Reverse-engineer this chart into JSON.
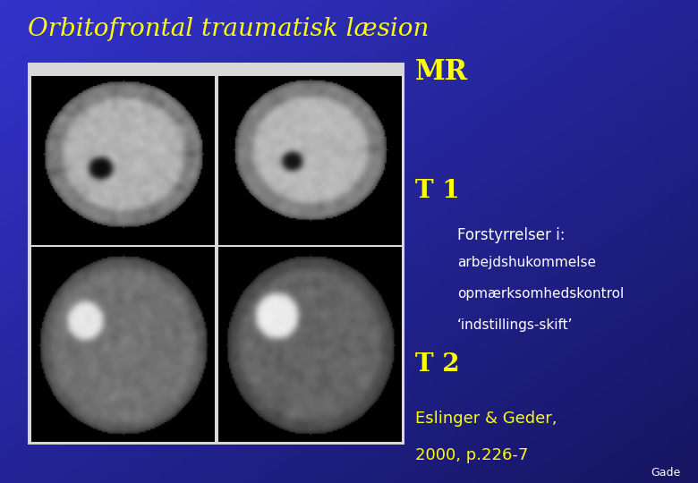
{
  "bg_color_top_left": "#3333CC",
  "bg_color_bottom_right": "#1a1a6e",
  "title": "Orbitofrontal traumatisk læsion",
  "title_color": "#FFFF00",
  "title_fontsize": 20,
  "mr_label": "MR",
  "mr_color": "#FFFF00",
  "mr_fontsize": 22,
  "t1_label": "T 1",
  "t1_color": "#FFFF00",
  "t1_fontsize": 20,
  "t2_label": "T 2",
  "t2_color": "#FFFF00",
  "t2_fontsize": 20,
  "forstyrrelser_title": "Forstyrrelser i:",
  "forstyrrelser_lines": [
    "arbejdshukommelse",
    "opmærksomhedskontrol",
    "‘indstillings-skift’"
  ],
  "forstyrrelser_color": "#FFFFFF",
  "forstyrrelser_title_fontsize": 12,
  "forstyrrelser_fontsize": 11,
  "citation_lines": [
    "Eslinger & Geder,",
    "2000, p.226-7"
  ],
  "citation_color": "#FFFF00",
  "citation_fontsize": 13,
  "gade_label": "Gade",
  "gade_color": "#FFFFFF",
  "gade_fontsize": 9
}
